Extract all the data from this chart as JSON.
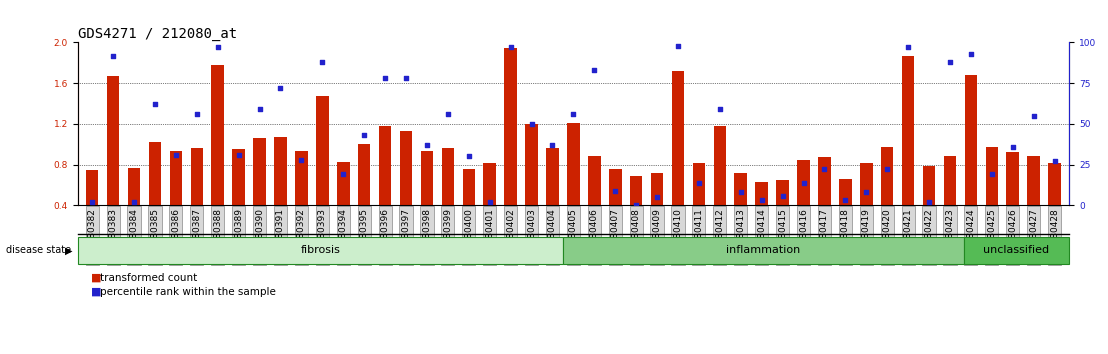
{
  "title": "GDS4271 / 212080_at",
  "samples": [
    "GSM380382",
    "GSM380383",
    "GSM380384",
    "GSM380385",
    "GSM380386",
    "GSM380387",
    "GSM380388",
    "GSM380389",
    "GSM380390",
    "GSM380391",
    "GSM380392",
    "GSM380393",
    "GSM380394",
    "GSM380395",
    "GSM380396",
    "GSM380397",
    "GSM380398",
    "GSM380399",
    "GSM380400",
    "GSM380401",
    "GSM380402",
    "GSM380403",
    "GSM380404",
    "GSM380405",
    "GSM380406",
    "GSM380407",
    "GSM380408",
    "GSM380409",
    "GSM380410",
    "GSM380411",
    "GSM380412",
    "GSM380413",
    "GSM380414",
    "GSM380415",
    "GSM380416",
    "GSM380417",
    "GSM380418",
    "GSM380419",
    "GSM380420",
    "GSM380421",
    "GSM380422",
    "GSM380423",
    "GSM380424",
    "GSM380425",
    "GSM380426",
    "GSM380427",
    "GSM380428"
  ],
  "bar_values": [
    0.75,
    1.67,
    0.77,
    1.02,
    0.93,
    0.96,
    1.78,
    0.95,
    1.06,
    1.07,
    0.93,
    1.47,
    0.83,
    1.0,
    1.18,
    1.13,
    0.93,
    0.96,
    0.76,
    0.82,
    1.95,
    1.2,
    0.96,
    1.21,
    0.88,
    0.76,
    0.69,
    0.72,
    1.72,
    0.82,
    1.18,
    0.72,
    0.63,
    0.65,
    0.85,
    0.87,
    0.66,
    0.82,
    0.97,
    1.87,
    0.79,
    0.88,
    1.68,
    0.97,
    0.92,
    0.88,
    0.82
  ],
  "dot_pct": [
    2,
    92,
    2,
    62,
    31,
    56,
    97,
    31,
    59,
    72,
    28,
    88,
    19,
    43,
    78,
    78,
    37,
    56,
    30,
    2,
    97,
    50,
    37,
    56,
    83,
    9,
    0,
    5,
    98,
    14,
    59,
    8,
    3,
    6,
    14,
    22,
    3,
    8,
    22,
    97,
    2,
    88,
    93,
    19,
    36,
    55,
    27
  ],
  "groups": [
    {
      "label": "fibrosis",
      "start": 0,
      "end": 23,
      "color": "#cceecc"
    },
    {
      "label": "inflammation",
      "start": 23,
      "end": 42,
      "color": "#88cc88"
    },
    {
      "label": "unclassified",
      "start": 42,
      "end": 47,
      "color": "#55bb55"
    }
  ],
  "bar_color": "#cc2200",
  "dot_color": "#2222cc",
  "ylim_left": [
    0.4,
    2.0
  ],
  "yticks_left": [
    0.4,
    0.8,
    1.2,
    1.6,
    2.0
  ],
  "yticks_right": [
    0,
    25,
    50,
    75,
    100
  ],
  "bg_color": "#ffffff",
  "title_fontsize": 10,
  "tick_fontsize": 6.5,
  "group_fontsize": 8,
  "legend_fontsize": 7.5
}
